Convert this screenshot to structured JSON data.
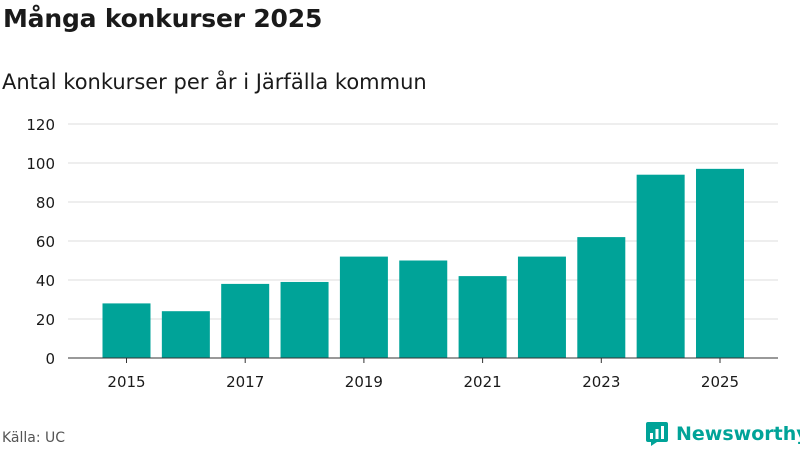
{
  "header": {
    "title": "Många konkurser 2025",
    "subtitle": "Antal konkurser per år i Järfälla kommun"
  },
  "footer": {
    "source": "Källa: UC",
    "brand_name": "Newsworthy",
    "brand_icon": "newsworthy-logo-icon"
  },
  "colors": {
    "bar": "#00a398",
    "brand": "#00a398",
    "grid": "#dddddd",
    "axis": "#333333",
    "text": "#1a1a1a"
  },
  "chart_data": {
    "type": "bar",
    "title": "Många konkurser 2025",
    "subtitle": "Antal konkurser per år i Järfälla kommun",
    "xlabel": "",
    "ylabel": "",
    "categories": [
      "2015",
      "2016",
      "2017",
      "2018",
      "2019",
      "2020",
      "2021",
      "2022",
      "2023",
      "2024",
      "2025"
    ],
    "values": [
      28,
      24,
      38,
      39,
      52,
      50,
      42,
      52,
      62,
      94,
      97
    ],
    "x_tick_labels": [
      "2015",
      "2017",
      "2019",
      "2021",
      "2023",
      "2025"
    ],
    "y_ticks": [
      0,
      20,
      40,
      60,
      80,
      100,
      120
    ],
    "ylim": [
      0,
      120
    ],
    "grid": true
  }
}
